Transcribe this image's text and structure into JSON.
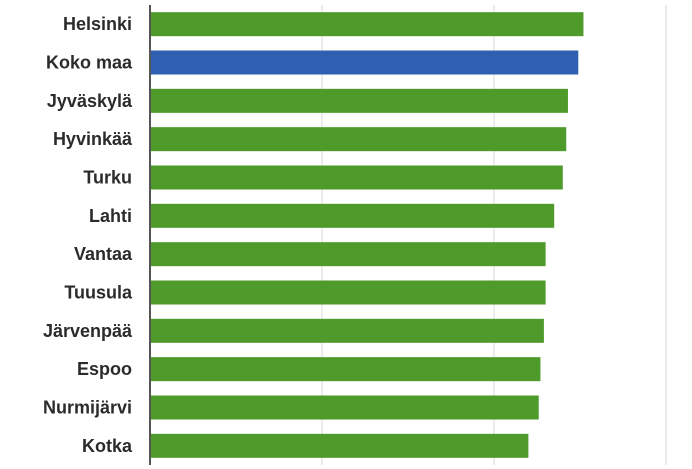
{
  "chart_data": {
    "type": "bar",
    "orientation": "horizontal",
    "categories": [
      "Helsinki",
      "Koko maa",
      "Jyväskylä",
      "Hyvinkää",
      "Turku",
      "Lahti",
      "Vantaa",
      "Tuusula",
      "Järvenpää",
      "Espoo",
      "Nurmijärvi",
      "Kotka"
    ],
    "values": [
      25.2,
      24.9,
      24.3,
      24.2,
      24.0,
      23.5,
      23.0,
      23.0,
      22.9,
      22.7,
      22.6,
      22.0
    ],
    "highlight": "Koko maa",
    "title": "",
    "xlabel": "",
    "ylabel": "",
    "xlim": [
      0,
      30
    ],
    "grid": true,
    "legend": "none",
    "colors": {
      "bar": "#4e9a2a",
      "highlight": "#2e5fb0",
      "grid": "#d9d9d9",
      "axis": "#555555",
      "label": "#2b2b2b"
    }
  }
}
